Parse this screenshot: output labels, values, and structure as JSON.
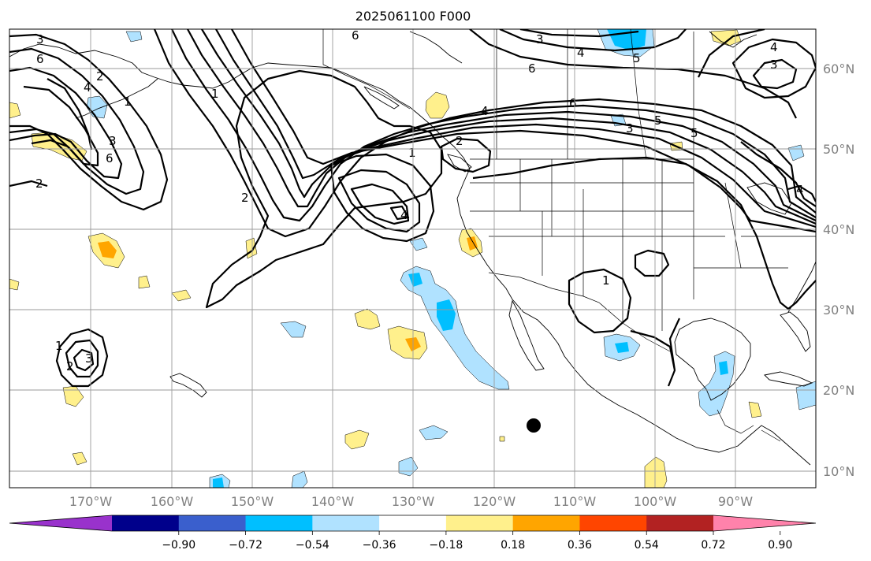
{
  "title": "2025061100 F000",
  "lat_labels": [
    "60°N",
    "50°N",
    "40°N",
    "30°N",
    "20°N",
    "10°N"
  ],
  "lon_labels": [
    "170°W",
    "160°W",
    "150°W",
    "140°W",
    "130°W",
    "120°W",
    "110°W",
    "100°W",
    "90°W"
  ],
  "colorbar": {
    "ticks": [
      "−0.90",
      "−0.72",
      "−0.54",
      "−0.36",
      "−0.18",
      "0.18",
      "0.36",
      "0.54",
      "0.72",
      "0.90"
    ],
    "colors": [
      "#9932cc",
      "#00008b",
      "#3a5fcd",
      "#00bfff",
      "#b0e2ff",
      "#ffffff",
      "#fff08c",
      "#ffa500",
      "#ff4500",
      "#b22222",
      "#ff82ab"
    ]
  },
  "contour_labels": [
    "3",
    "6",
    "2",
    "4",
    "1",
    "3",
    "6",
    "2",
    "6",
    "3",
    "4",
    "5",
    "6",
    "4",
    "6",
    "3",
    "5",
    "4",
    "3",
    "5",
    "1",
    "2",
    "4",
    "1",
    "1",
    "2",
    "3",
    "2",
    "4",
    "1"
  ],
  "colors": {
    "contour": "#000000",
    "grid": "#9a9a9a",
    "tick_label": "#808080",
    "marker": "#000000"
  }
}
